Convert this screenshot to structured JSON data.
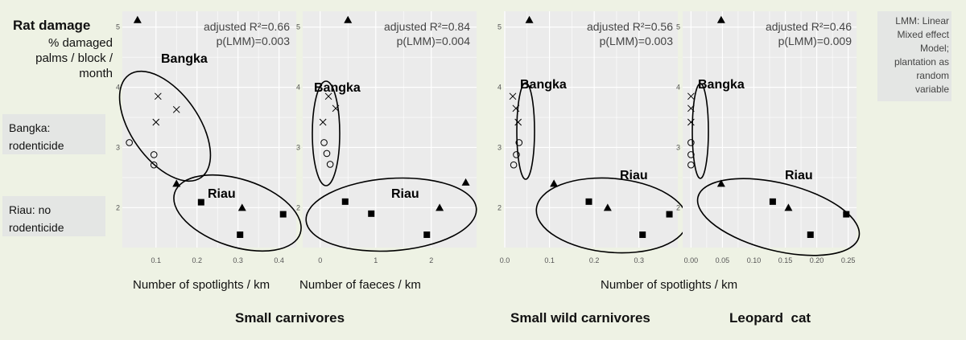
{
  "y_title": "Rat damage",
  "y_subtitle": "% damaged palms / block / month",
  "notes": {
    "bangka": "Bangka: rodenticide",
    "riau": "Riau: no rodenticide",
    "lmm": "LMM: Linear Mixed effect Model; plantation as random variable"
  },
  "x_labels": {
    "spotlights_left": "Number of spotlights / km",
    "faeces": "Number of faeces / km",
    "spotlights_right": "Number of spotlights / km"
  },
  "group_titles": {
    "small_carnivores": "Small carnivores",
    "small_wild_carnivores": "Small wild carnivores",
    "leopard_cat": "Leopard  cat"
  },
  "colors": {
    "panel_bg": "#ebebeb",
    "grid": "#ffffff",
    "ink": "#000000",
    "page_bg": "#eef2e4"
  },
  "chart_data": [
    {
      "type": "scatter",
      "x_ticks": [
        "0.1",
        "0.2",
        "0.3",
        "0.4"
      ],
      "y_ticks": [
        "2",
        "3",
        "4",
        "5"
      ],
      "xlim": [
        0.02,
        0.44
      ],
      "ylim": [
        1.35,
        5.25
      ],
      "annotation": [
        "adjusted R²=0.66",
        "p(LMM)=0.003"
      ],
      "group_labels": [
        "Bangka",
        "Riau"
      ],
      "points": [
        {
          "x": 0.055,
          "y": 5.12,
          "shape": "triangle"
        },
        {
          "x": 0.105,
          "y": 3.85,
          "shape": "cross"
        },
        {
          "x": 0.15,
          "y": 3.63,
          "shape": "cross"
        },
        {
          "x": 0.1,
          "y": 3.42,
          "shape": "cross"
        },
        {
          "x": 0.035,
          "y": 3.08,
          "shape": "circle"
        },
        {
          "x": 0.095,
          "y": 2.88,
          "shape": "circle"
        },
        {
          "x": 0.095,
          "y": 2.71,
          "shape": "circle"
        },
        {
          "x": 0.15,
          "y": 2.4,
          "shape": "triangle"
        },
        {
          "x": 0.21,
          "y": 2.09,
          "shape": "square"
        },
        {
          "x": 0.31,
          "y": 2.0,
          "shape": "triangle"
        },
        {
          "x": 0.41,
          "y": 1.89,
          "shape": "square"
        },
        {
          "x": 0.305,
          "y": 1.55,
          "shape": "square"
        }
      ]
    },
    {
      "type": "scatter",
      "x_ticks": [
        "0",
        "1",
        "2"
      ],
      "y_ticks": [
        "2",
        "3",
        "4",
        "5"
      ],
      "xlim": [
        -0.3,
        2.8
      ],
      "ylim": [
        1.35,
        5.25
      ],
      "annotation": [
        "adjusted R²=0.84",
        "p(LMM)=0.004"
      ],
      "group_labels": [
        "Bangka",
        "Riau"
      ],
      "points": [
        {
          "x": 0.5,
          "y": 5.12,
          "shape": "triangle"
        },
        {
          "x": 0.15,
          "y": 3.85,
          "shape": "cross"
        },
        {
          "x": 0.28,
          "y": 3.65,
          "shape": "cross"
        },
        {
          "x": 0.05,
          "y": 3.42,
          "shape": "cross"
        },
        {
          "x": 0.07,
          "y": 3.08,
          "shape": "circle"
        },
        {
          "x": 0.12,
          "y": 2.9,
          "shape": "circle"
        },
        {
          "x": 0.18,
          "y": 2.72,
          "shape": "circle"
        },
        {
          "x": 0.45,
          "y": 2.1,
          "shape": "square"
        },
        {
          "x": 0.92,
          "y": 1.9,
          "shape": "square"
        },
        {
          "x": 1.92,
          "y": 1.55,
          "shape": "square"
        },
        {
          "x": 2.15,
          "y": 2.0,
          "shape": "triangle"
        },
        {
          "x": 2.62,
          "y": 2.42,
          "shape": "triangle"
        }
      ]
    },
    {
      "type": "scatter",
      "x_ticks": [
        "0.0",
        "0.1",
        "0.2",
        "0.3"
      ],
      "y_ticks": [
        "2",
        "3",
        "4",
        "5"
      ],
      "xlim": [
        0,
        0.385
      ],
      "ylim": [
        1.35,
        5.25
      ],
      "annotation": [
        "adjusted R²=0.56",
        "p(LMM)=0.003"
      ],
      "group_labels": [
        "Bangka",
        "Riau"
      ],
      "points": [
        {
          "x": 0.055,
          "y": 5.12,
          "shape": "triangle"
        },
        {
          "x": 0.018,
          "y": 3.85,
          "shape": "cross"
        },
        {
          "x": 0.025,
          "y": 3.65,
          "shape": "cross"
        },
        {
          "x": 0.03,
          "y": 3.42,
          "shape": "cross"
        },
        {
          "x": 0.032,
          "y": 3.08,
          "shape": "circle"
        },
        {
          "x": 0.026,
          "y": 2.88,
          "shape": "circle"
        },
        {
          "x": 0.02,
          "y": 2.71,
          "shape": "circle"
        },
        {
          "x": 0.11,
          "y": 2.4,
          "shape": "triangle"
        },
        {
          "x": 0.188,
          "y": 2.1,
          "shape": "square"
        },
        {
          "x": 0.23,
          "y": 2.0,
          "shape": "triangle"
        },
        {
          "x": 0.308,
          "y": 1.55,
          "shape": "square"
        },
        {
          "x": 0.368,
          "y": 1.89,
          "shape": "square"
        }
      ]
    },
    {
      "type": "scatter",
      "x_ticks": [
        "0.00",
        "0.05",
        "0.10",
        "0.15",
        "0.20",
        "0.25"
      ],
      "y_ticks": [
        "2",
        "3",
        "4",
        "5"
      ],
      "xlim": [
        -0.012,
        0.262
      ],
      "ylim": [
        1.35,
        5.25
      ],
      "annotation": [
        "adjusted R²=0.46",
        "p(LMM)=0.009"
      ],
      "group_labels": [
        "Bangka",
        "Riau"
      ],
      "points": [
        {
          "x": 0.048,
          "y": 5.12,
          "shape": "triangle"
        },
        {
          "x": 0.0,
          "y": 3.85,
          "shape": "cross"
        },
        {
          "x": 0.0,
          "y": 3.65,
          "shape": "cross"
        },
        {
          "x": 0.0,
          "y": 3.42,
          "shape": "cross"
        },
        {
          "x": 0.0,
          "y": 3.08,
          "shape": "circle"
        },
        {
          "x": 0.0,
          "y": 2.88,
          "shape": "circle"
        },
        {
          "x": 0.0,
          "y": 2.71,
          "shape": "circle"
        },
        {
          "x": 0.048,
          "y": 2.4,
          "shape": "triangle"
        },
        {
          "x": 0.13,
          "y": 2.1,
          "shape": "square"
        },
        {
          "x": 0.155,
          "y": 2.0,
          "shape": "triangle"
        },
        {
          "x": 0.19,
          "y": 1.55,
          "shape": "square"
        },
        {
          "x": 0.247,
          "y": 1.89,
          "shape": "square"
        }
      ]
    }
  ]
}
